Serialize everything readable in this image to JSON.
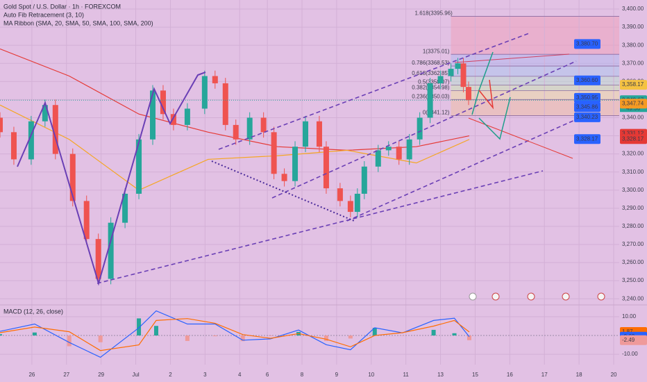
{
  "header": {
    "symbol": "Gold Spot / U.S. Dollar · 1h · FOREXCOM",
    "fib": "Auto Fib Retracement (3, 10)",
    "ma": "MA Ribbon (SMA, 20, SMA, 50, SMA, 100, SMA, 200)"
  },
  "chart_data": [
    {
      "type": "candlestick",
      "up_color": "#26a69a",
      "down_color": "#ef5350",
      "x": [
        -0.92,
        -0.52,
        -0.02,
        0.38,
        0.68,
        1.18,
        1.58,
        1.92,
        2.28,
        2.69,
        3.09,
        3.49,
        3.79,
        4.09,
        4.49,
        4.99,
        5.29,
        5.59,
        5.89,
        6.29,
        6.69,
        6.99,
        7.29,
        7.6,
        7.9,
        8.3,
        8.5,
        8.9,
        9.2,
        9.4,
        9.6,
        10.0,
        10.3,
        10.6,
        10.9,
        11.2,
        11.5,
        11.8,
        12.1,
        12.3,
        12.46,
        12.61
      ],
      "open": [
        3340,
        3332,
        3317,
        3338,
        3347,
        3320,
        3294,
        3273,
        3251,
        3282,
        3298,
        3328,
        3355,
        3342,
        3336,
        3345,
        3363,
        3359,
        3336,
        3328,
        3340,
        3332,
        3309,
        3305,
        3324,
        3338,
        3324,
        3301,
        3294,
        3288,
        3298,
        3313,
        3322,
        3324,
        3317,
        3328,
        3340,
        3359,
        3363,
        3367,
        3370,
        3357
      ],
      "high": [
        3343,
        3335,
        3341,
        3350,
        3350,
        3323,
        3297,
        3276,
        3285,
        3301,
        3331,
        3358,
        3358,
        3345,
        3348,
        3366,
        3366,
        3362,
        3339,
        3343,
        3343,
        3335,
        3312,
        3327,
        3341,
        3341,
        3327,
        3304,
        3297,
        3301,
        3316,
        3325,
        3327,
        3327,
        3331,
        3343,
        3362,
        3366,
        3370,
        3373,
        3373,
        3360
      ],
      "low": [
        3329,
        3314,
        3314,
        3335,
        3317,
        3291,
        3270,
        3248,
        3248,
        3279,
        3295,
        3325,
        3339,
        3333,
        3333,
        3342,
        3356,
        3333,
        3325,
        3325,
        3329,
        3306,
        3302,
        3302,
        3321,
        3321,
        3298,
        3291,
        3285,
        3285,
        3295,
        3310,
        3319,
        3314,
        3314,
        3325,
        3337,
        3356,
        3360,
        3364,
        3354,
        3347
      ],
      "close": [
        3332,
        3317,
        3338,
        3347,
        3320,
        3294,
        3273,
        3251,
        3282,
        3298,
        3328,
        3355,
        3342,
        3336,
        3345,
        3363,
        3359,
        3336,
        3328,
        3340,
        3332,
        3309,
        3305,
        3324,
        3338,
        3324,
        3301,
        3294,
        3288,
        3298,
        3313,
        3322,
        3324,
        3317,
        3328,
        3340,
        3359,
        3363,
        3367,
        3370,
        3357,
        3349.67
      ],
      "ma_series": [
        {
          "color": "#e53935",
          "x": [
            -0.92,
            1.08,
            3.09,
            5.09,
            7.09,
            9.1,
            11.1,
            12.63
          ],
          "values": [
            3378,
            3363,
            3342,
            3332,
            3324,
            3322,
            3324,
            3330
          ]
        },
        {
          "color": "#f5a623",
          "x": [
            -0.92,
            1.08,
            3.09,
            5.09,
            7.09,
            9.1,
            11.1,
            12.63
          ],
          "values": [
            3347,
            3328,
            3300,
            3317,
            3319,
            3322,
            3315,
            3328
          ]
        }
      ],
      "xlim": [
        -0.92,
        16.96
      ],
      "ylim": [
        3237,
        3405
      ],
      "yticks": [
        {
          "value": 3400,
          "label": "3,400.00"
        },
        {
          "value": 3390,
          "label": "3,390.00"
        },
        {
          "value": 3380,
          "label": "3,380.00"
        },
        {
          "value": 3370,
          "label": "3,370.00"
        },
        {
          "value": 3360,
          "label": "3,360.00"
        },
        {
          "value": 3350,
          "label": "3,350.00"
        },
        {
          "value": 3340,
          "label": "3,340.00"
        },
        {
          "value": 3330,
          "label": "3,330.00"
        },
        {
          "value": 3320,
          "label": "3,320.00"
        },
        {
          "value": 3310,
          "label": "3,310.00"
        },
        {
          "value": 3300,
          "label": "3,300.00"
        },
        {
          "value": 3290,
          "label": "3,290.00"
        },
        {
          "value": 3280,
          "label": "3,280.00"
        },
        {
          "value": 3270,
          "label": "3,270.00"
        },
        {
          "value": 3260,
          "label": "3,260.00"
        },
        {
          "value": 3250,
          "label": "3,250.00"
        },
        {
          "value": 3240,
          "label": "3,240.00"
        }
      ],
      "fib_levels": [
        {
          "value": 3395.96,
          "label": "1.618(3395.96)"
        },
        {
          "value": 3375.01,
          "label": "1(3375.01)"
        },
        {
          "value": 3368.53,
          "label": "0.786(3368.53)"
        },
        {
          "value": 3362.85,
          "label": "0.618(3362.85)"
        },
        {
          "value": 3358.07,
          "label": "0.5(3358.07)"
        },
        {
          "value": 3354.98,
          "label": "0.382(3354.98)"
        },
        {
          "value": 3350.03,
          "label": "0.236(3350.03)"
        },
        {
          "value": 3341.12,
          "label": "0(3341.12)"
        }
      ],
      "targets": [
        {
          "value": 3380.7,
          "label": "3,380.70"
        },
        {
          "value": 3360.6,
          "label": "3,360.60"
        },
        {
          "value": 3350.95,
          "label": "3,350.95"
        },
        {
          "value": 3345.86,
          "label": "3,345.86"
        },
        {
          "value": 3340.23,
          "label": "3,340.23"
        },
        {
          "value": 3328.17,
          "label": "3,328.17"
        }
      ],
      "price_tags": [
        {
          "value": 3358.17,
          "label": "3,358.17",
          "color": "#f5c242"
        },
        {
          "value": 3349.67,
          "label": "3,349.67",
          "color": "#26a69a"
        },
        {
          "value": 3347.74,
          "label": "3,347.74",
          "color": "#f59a23"
        },
        {
          "value": 3331.12,
          "label": "3,331.12",
          "color": "#e53935"
        },
        {
          "value": 3328.17,
          "label": "3,328.17",
          "color": "#e53935"
        }
      ],
      "countdown": "49:56"
    },
    {
      "type": "line",
      "title": "MACD (12, 26, close)",
      "x": [
        -0.92,
        0.08,
        1.08,
        1.98,
        3.09,
        3.59,
        4.49,
        5.29,
        6.09,
        6.89,
        7.7,
        8.5,
        9.2,
        9.9,
        10.7,
        11.6,
        12.2,
        12.63
      ],
      "series": [
        {
          "color": "#2962ff",
          "values": [
            2.2,
            6.1,
            -3.7,
            -11.6,
            4.1,
            13.1,
            6.1,
            6.1,
            -2.5,
            -1.8,
            2.9,
            -4.9,
            -7.6,
            4.1,
            1.4,
            8.0,
            9.2,
            -0.63
          ]
        },
        {
          "color": "#ff6d00",
          "values": [
            1.5,
            4.5,
            2.0,
            -8.0,
            -5.0,
            8.0,
            9.0,
            6.5,
            0.5,
            -1.5,
            1.0,
            -2.0,
            -6.0,
            0.0,
            1.5,
            5.0,
            8.0,
            1.87
          ]
        }
      ],
      "histogram": [
        0.7,
        1.6,
        -5.7,
        -3.6,
        9.1,
        5.1,
        -2.9,
        -0.4,
        -3.0,
        -0.3,
        1.9,
        -2.9,
        -1.6,
        4.1,
        -0.1,
        3.0,
        1.2,
        -2.49
      ],
      "value_tags": [
        {
          "value": 1.87,
          "label": "1.87",
          "color": "#ff6d00"
        },
        {
          "value": -0.63,
          "label": "-0.63",
          "color": "#2962ff"
        },
        {
          "value": -2.49,
          "label": "-2.49",
          "color": "#ef9a9a"
        }
      ],
      "xlim": [
        -0.92,
        16.96
      ],
      "ylim": [
        -15.5,
        15.9
      ],
      "yticks": [
        {
          "value": 10,
          "label": "10.00"
        },
        {
          "value": -10,
          "label": "-10.00"
        }
      ],
      "xticks": [
        {
          "value": 0,
          "label": "26"
        },
        {
          "value": 1,
          "label": "27"
        },
        {
          "value": 2,
          "label": "29"
        },
        {
          "value": 3,
          "label": "Jul"
        },
        {
          "value": 4,
          "label": "2"
        },
        {
          "value": 5,
          "label": "3"
        },
        {
          "value": 6,
          "label": "4"
        },
        {
          "value": 6.8,
          "label": "6"
        },
        {
          "value": 7.8,
          "label": "8"
        },
        {
          "value": 8.8,
          "label": "9"
        },
        {
          "value": 9.8,
          "label": "10"
        },
        {
          "value": 10.8,
          "label": "11"
        },
        {
          "value": 11.8,
          "label": "13"
        },
        {
          "value": 12.8,
          "label": "15"
        },
        {
          "value": 13.8,
          "label": "16"
        },
        {
          "value": 14.8,
          "label": "17"
        },
        {
          "value": 15.8,
          "label": "18"
        },
        {
          "value": 16.8,
          "label": "20"
        }
      ]
    }
  ]
}
